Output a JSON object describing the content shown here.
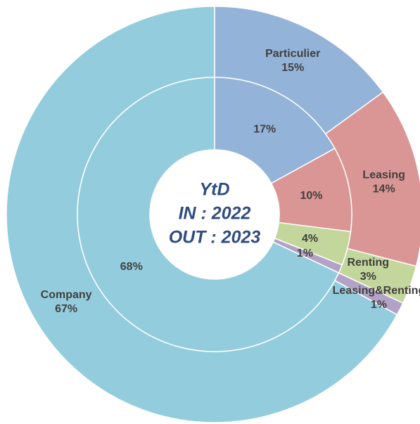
{
  "chart_data": {
    "type": "donut",
    "center_text": [
      "YtD",
      "IN : 2022",
      "OUT : 2023"
    ],
    "categories": [
      "Particulier",
      "Leasing",
      "Renting",
      "Leasing&Renting",
      "Company"
    ],
    "colors": [
      "#94b3d9",
      "#d99694",
      "#c3d69b",
      "#b3a2c7",
      "#93cddd"
    ],
    "rings": [
      {
        "values": [
          15,
          14,
          3,
          1,
          67
        ],
        "value_labels": [
          "15%",
          "14%",
          "3%",
          "1%",
          "67%"
        ]
      },
      {
        "values": [
          17,
          10,
          4,
          1,
          68
        ],
        "value_labels": [
          "17%",
          "10%",
          "4%",
          "1%",
          "68%"
        ]
      }
    ]
  }
}
